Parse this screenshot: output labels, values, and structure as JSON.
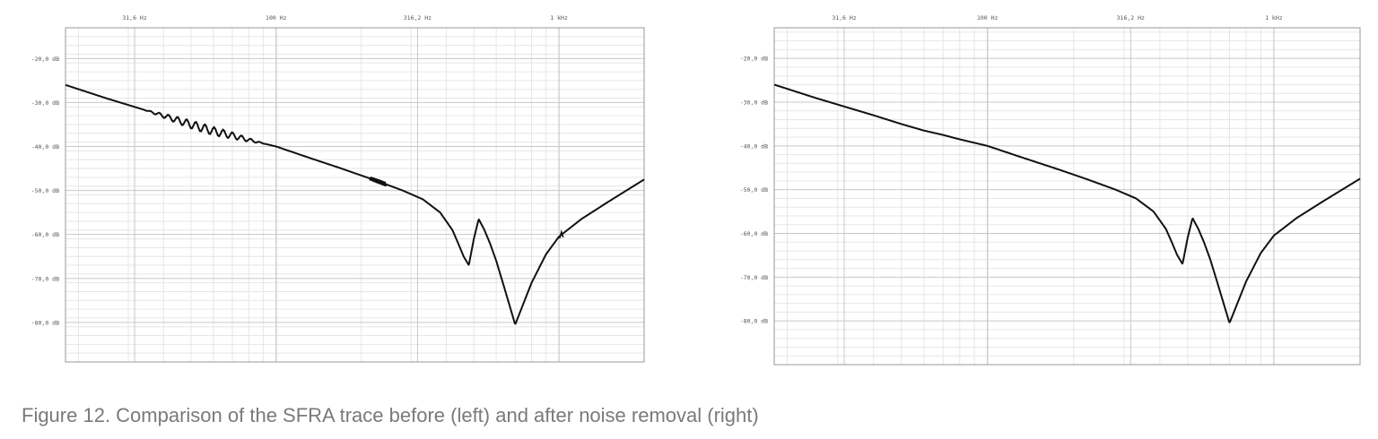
{
  "caption": "Figure 12. Comparison of the SFRA trace before (left) and after noise removal (right)",
  "colors": {
    "trace": "#111111",
    "grid_major": "#c8c8c8",
    "grid_minor": "#e6e6e6",
    "frame": "#999999"
  },
  "chart_data": [
    {
      "type": "line",
      "title": "",
      "xscale": "log",
      "xlim": [
        18,
        2000
      ],
      "ylim": [
        -89,
        -13
      ],
      "grid": true,
      "x_ticks": [
        {
          "value": 31.6,
          "label": "31,6 Hz"
        },
        {
          "value": 100,
          "label": "100 Hz"
        },
        {
          "value": 316.2,
          "label": "316,2 Hz"
        },
        {
          "value": 1000,
          "label": "1 kHz"
        }
      ],
      "y_ticks": [
        {
          "value": -20,
          "label": "-20,0 dB"
        },
        {
          "value": -30,
          "label": "-30,0 dB"
        },
        {
          "value": -40,
          "label": "-40,0 dB"
        },
        {
          "value": -50,
          "label": "-50,0 dB"
        },
        {
          "value": -60,
          "label": "-60,0 dB"
        },
        {
          "value": -70,
          "label": "-70,0 dB"
        },
        {
          "value": -80,
          "label": "-80,0 dB"
        }
      ],
      "noisy": true,
      "series": [
        {
          "x": [
            18,
            25,
            31.6,
            40,
            50,
            60,
            70,
            80,
            100,
            130,
            170,
            220,
            280,
            330,
            380,
            420,
            440,
            460,
            480,
            500,
            520,
            545,
            570,
            600,
            640,
            700,
            800,
            900,
            1000,
            1200,
            1500,
            2000
          ],
          "y": [
            -26,
            -29,
            -31,
            -33,
            -35,
            -36.5,
            -37.5,
            -38.5,
            -40,
            -42.5,
            -45,
            -47.5,
            -50,
            -52,
            -55,
            -59,
            -62,
            -65,
            -67,
            -61,
            -56.5,
            -59,
            -62,
            -66,
            -72,
            -80.5,
            -71,
            -64.5,
            -60.5,
            -56.5,
            -52.5,
            -47.5
          ]
        }
      ]
    },
    {
      "type": "line",
      "title": "",
      "xscale": "log",
      "xlim": [
        18,
        2000
      ],
      "ylim": [
        -90,
        -13
      ],
      "grid": true,
      "x_ticks": [
        {
          "value": 31.6,
          "label": "31,6 Hz"
        },
        {
          "value": 100,
          "label": "100 Hz"
        },
        {
          "value": 316.2,
          "label": "316,2 Hz"
        },
        {
          "value": 1000,
          "label": "1 kHz"
        }
      ],
      "y_ticks": [
        {
          "value": -20,
          "label": "-20,0 dB"
        },
        {
          "value": -30,
          "label": "-30,0 dB"
        },
        {
          "value": -40,
          "label": "-40,0 dB"
        },
        {
          "value": -50,
          "label": "-50,0 dB"
        },
        {
          "value": -60,
          "label": "-60,0 dB"
        },
        {
          "value": -70,
          "label": "-70,0 dB"
        },
        {
          "value": -80,
          "label": "-80,0 dB"
        }
      ],
      "noisy": false,
      "series": [
        {
          "x": [
            18,
            25,
            31.6,
            40,
            50,
            60,
            70,
            80,
            100,
            130,
            170,
            220,
            280,
            330,
            380,
            420,
            440,
            460,
            480,
            500,
            520,
            545,
            570,
            600,
            640,
            700,
            800,
            900,
            1000,
            1200,
            1500,
            2000
          ],
          "y": [
            -26,
            -29,
            -31,
            -33,
            -35,
            -36.5,
            -37.5,
            -38.5,
            -40,
            -42.5,
            -45,
            -47.5,
            -50,
            -52,
            -55,
            -59,
            -62,
            -65,
            -67,
            -61,
            -56.5,
            -59,
            -62,
            -66,
            -72,
            -80.5,
            -71,
            -64.5,
            -60.5,
            -56.5,
            -52.5,
            -47.5
          ]
        }
      ]
    }
  ]
}
